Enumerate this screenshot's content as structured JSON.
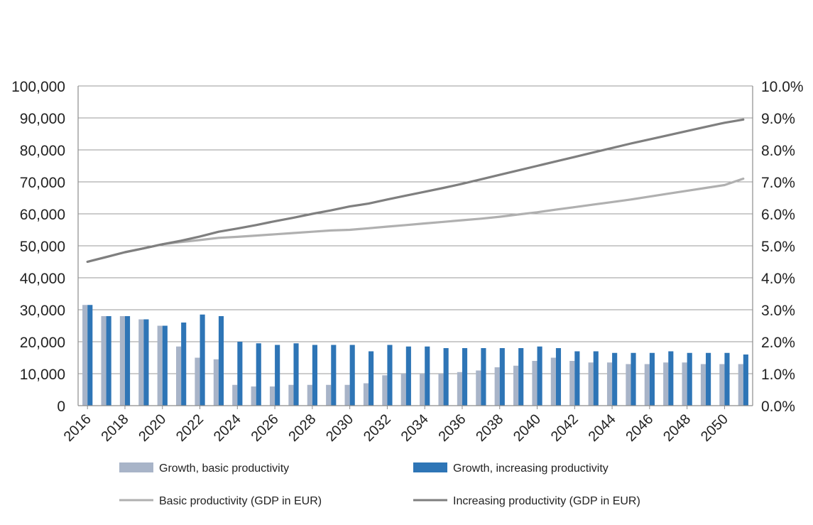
{
  "chart_data": {
    "type": "bar",
    "x": [
      2016,
      2017,
      2018,
      2019,
      2020,
      2021,
      2022,
      2023,
      2024,
      2025,
      2026,
      2027,
      2028,
      2029,
      2030,
      2031,
      2032,
      2033,
      2034,
      2035,
      2036,
      2037,
      2038,
      2039,
      2040,
      2041,
      2042,
      2043,
      2044,
      2045,
      2046,
      2047,
      2048,
      2049,
      2050,
      2051
    ],
    "x_tick_labels": [
      "2016",
      "2018",
      "2020",
      "2022",
      "2024",
      "2026",
      "2028",
      "2030",
      "2032",
      "2034",
      "2036",
      "2038",
      "2040",
      "2042",
      "2044",
      "2046",
      "2048",
      "2050"
    ],
    "y_left": {
      "lim": [
        0,
        100000
      ],
      "tick_labels": [
        "0",
        "10,000",
        "20,000",
        "30,000",
        "40,000",
        "50,000",
        "60,000",
        "70,000",
        "80,000",
        "90,000",
        "100,000"
      ]
    },
    "y_right": {
      "lim": [
        0,
        10
      ],
      "tick_labels": [
        "0.0%",
        "1.0%",
        "2.0%",
        "3.0%",
        "4.0%",
        "5.0%",
        "6.0%",
        "7.0%",
        "8.0%",
        "9.0%",
        "10.0%"
      ]
    },
    "grid": true,
    "legend_position": "bottom",
    "series": [
      {
        "name": "Growth, basic productivity",
        "kind": "bar",
        "axis": "right",
        "color": "#a8b4c8",
        "values": [
          3.15,
          2.8,
          2.8,
          2.7,
          2.5,
          1.85,
          1.5,
          1.45,
          0.65,
          0.6,
          0.6,
          0.65,
          0.65,
          0.65,
          0.65,
          0.7,
          0.95,
          1.0,
          1.0,
          1.0,
          1.05,
          1.1,
          1.2,
          1.25,
          1.4,
          1.5,
          1.4,
          1.35,
          1.35,
          1.3,
          1.3,
          1.35,
          1.35,
          1.3,
          1.3,
          1.3
        ]
      },
      {
        "name": "Growth, increasing productivity",
        "kind": "bar",
        "axis": "right",
        "color": "#2e75b6",
        "values": [
          3.15,
          2.8,
          2.8,
          2.7,
          2.5,
          2.6,
          2.85,
          2.8,
          2.0,
          1.95,
          1.9,
          1.95,
          1.9,
          1.9,
          1.9,
          1.7,
          1.9,
          1.85,
          1.85,
          1.8,
          1.8,
          1.8,
          1.8,
          1.8,
          1.85,
          1.8,
          1.7,
          1.7,
          1.65,
          1.65,
          1.65,
          1.7,
          1.65,
          1.65,
          1.65,
          1.6
        ]
      },
      {
        "name": "Basic productivity (GDP in EUR)",
        "kind": "line",
        "axis": "left",
        "color": "#b0b0b0",
        "values": [
          45000,
          46500,
          48000,
          49200,
          50500,
          51200,
          51800,
          52500,
          52800,
          53200,
          53600,
          54000,
          54400,
          54800,
          55000,
          55500,
          56000,
          56500,
          57000,
          57500,
          58000,
          58500,
          59100,
          59800,
          60500,
          61300,
          62100,
          62900,
          63700,
          64500,
          65400,
          66300,
          67200,
          68100,
          69000,
          71000
        ]
      },
      {
        "name": "Increasing productivity (GDP in EUR)",
        "kind": "line",
        "axis": "left",
        "color": "#7f7f7f",
        "values": [
          45000,
          46500,
          48000,
          49200,
          50500,
          51600,
          52900,
          54400,
          55400,
          56500,
          57700,
          58800,
          60000,
          61100,
          62300,
          63200,
          64500,
          65700,
          66900,
          68100,
          69400,
          70800,
          72200,
          73600,
          75000,
          76400,
          77800,
          79200,
          80600,
          82000,
          83300,
          84600,
          85900,
          87200,
          88500,
          89500
        ]
      }
    ]
  }
}
